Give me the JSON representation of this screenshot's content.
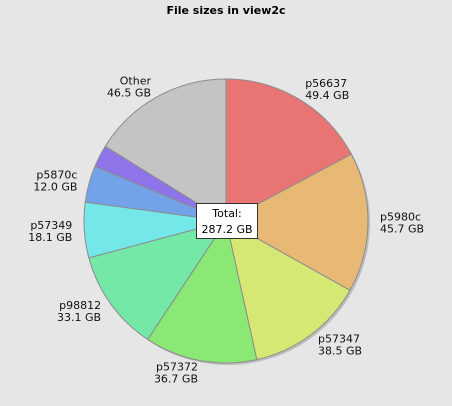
{
  "chart_data": {
    "type": "pie",
    "title": "File sizes in view2c",
    "unit": "GB",
    "start_angle_deg": 0,
    "direction": "clockwise",
    "slices": [
      {
        "label": "p56637",
        "value_label": "49.4 GB",
        "value": 49.4,
        "color": "#e87574"
      },
      {
        "label": "p5980c",
        "value_label": "45.7 GB",
        "value": 45.7,
        "color": "#e8b974"
      },
      {
        "label": "p57347",
        "value_label": "38.5 GB",
        "value": 38.5,
        "color": "#d6e874"
      },
      {
        "label": "p57372",
        "value_label": "36.7 GB",
        "value": 36.7,
        "color": "#8ae874"
      },
      {
        "label": "p98812",
        "value_label": "33.1 GB",
        "value": 33.1,
        "color": "#74e8a7"
      },
      {
        "label": "p57349",
        "value_label": "18.1 GB",
        "value": 18.1,
        "color": "#74e8e8"
      },
      {
        "label": "p5870c",
        "value_label": "12.0 GB",
        "value": 12.0,
        "color": "#74a2e8"
      },
      {
        "label": "",
        "value_label": "",
        "value": 7.2,
        "color": "#8e74e8"
      },
      {
        "label": "Other",
        "value_label": "46.5 GB",
        "value": 46.5,
        "color": "#c4c4c4"
      }
    ],
    "total_label": "Total:",
    "total_value": "287.2 GB"
  }
}
